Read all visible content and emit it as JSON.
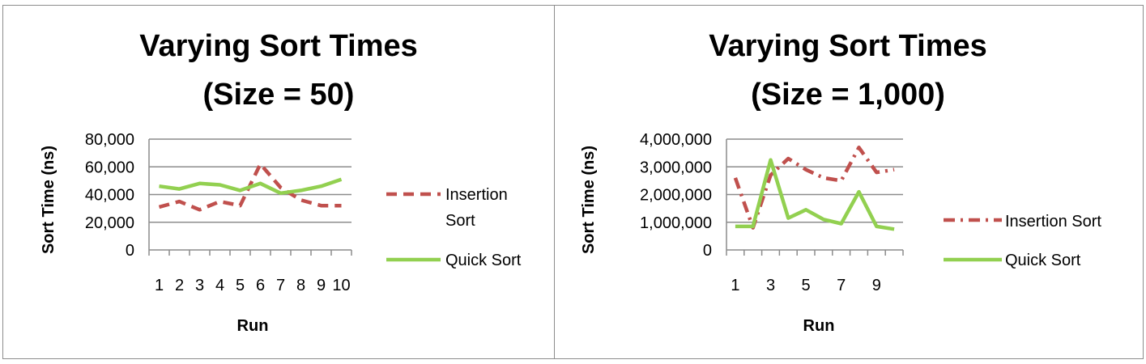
{
  "chart_data": [
    {
      "type": "line",
      "title_lines": [
        "Varying Sort Times",
        "(Size = 50)"
      ],
      "xlabel": "Run",
      "ylabel": "Sort Time (ns)",
      "ylim": [
        0,
        80000
      ],
      "yticks": [
        "80,000",
        "60,000",
        "40,000",
        "20,000",
        "0"
      ],
      "x": [
        1,
        2,
        3,
        4,
        5,
        6,
        7,
        8,
        9,
        10
      ],
      "xtick_labels": [
        "1",
        "2",
        "3",
        "4",
        "5",
        "6",
        "7",
        "8",
        "9",
        "10"
      ],
      "grid": true,
      "legend_position": "right",
      "series": [
        {
          "name_lines": [
            "Insertion",
            "Sort"
          ],
          "color": "#c0504d",
          "dash": "dashed",
          "values": [
            31000,
            35000,
            29000,
            35000,
            32000,
            62000,
            45000,
            36000,
            32000,
            32000
          ]
        },
        {
          "name_lines": [
            "Quick Sort"
          ],
          "color": "#92d050",
          "dash": "solid",
          "values": [
            46000,
            44000,
            48000,
            47000,
            43000,
            48000,
            41000,
            43000,
            46000,
            51000
          ]
        }
      ]
    },
    {
      "type": "line",
      "title_lines": [
        "Varying Sort Times",
        "(Size = 1,000)"
      ],
      "xlabel": "Run",
      "ylabel": "Sort Time (ns)",
      "ylim": [
        0,
        4000000
      ],
      "yticks": [
        "4,000,000",
        "3,000,000",
        "2,000,000",
        "1,000,000",
        "0"
      ],
      "x": [
        1,
        2,
        3,
        4,
        5,
        6,
        7,
        8,
        9,
        10
      ],
      "xtick_labels": [
        "1",
        "",
        "3",
        "",
        "5",
        "",
        "7",
        "",
        "9",
        ""
      ],
      "grid": true,
      "legend_position": "right",
      "series": [
        {
          "name_lines": [
            "Insertion Sort"
          ],
          "color": "#c0504d",
          "dash": "dash-dot",
          "values": [
            2600000,
            800000,
            2700000,
            3300000,
            2900000,
            2600000,
            2500000,
            3700000,
            2800000,
            2900000
          ]
        },
        {
          "name_lines": [
            "Quick Sort"
          ],
          "color": "#92d050",
          "dash": "solid",
          "values": [
            850000,
            850000,
            3250000,
            1150000,
            1450000,
            1100000,
            950000,
            2100000,
            850000,
            750000
          ]
        }
      ]
    }
  ]
}
